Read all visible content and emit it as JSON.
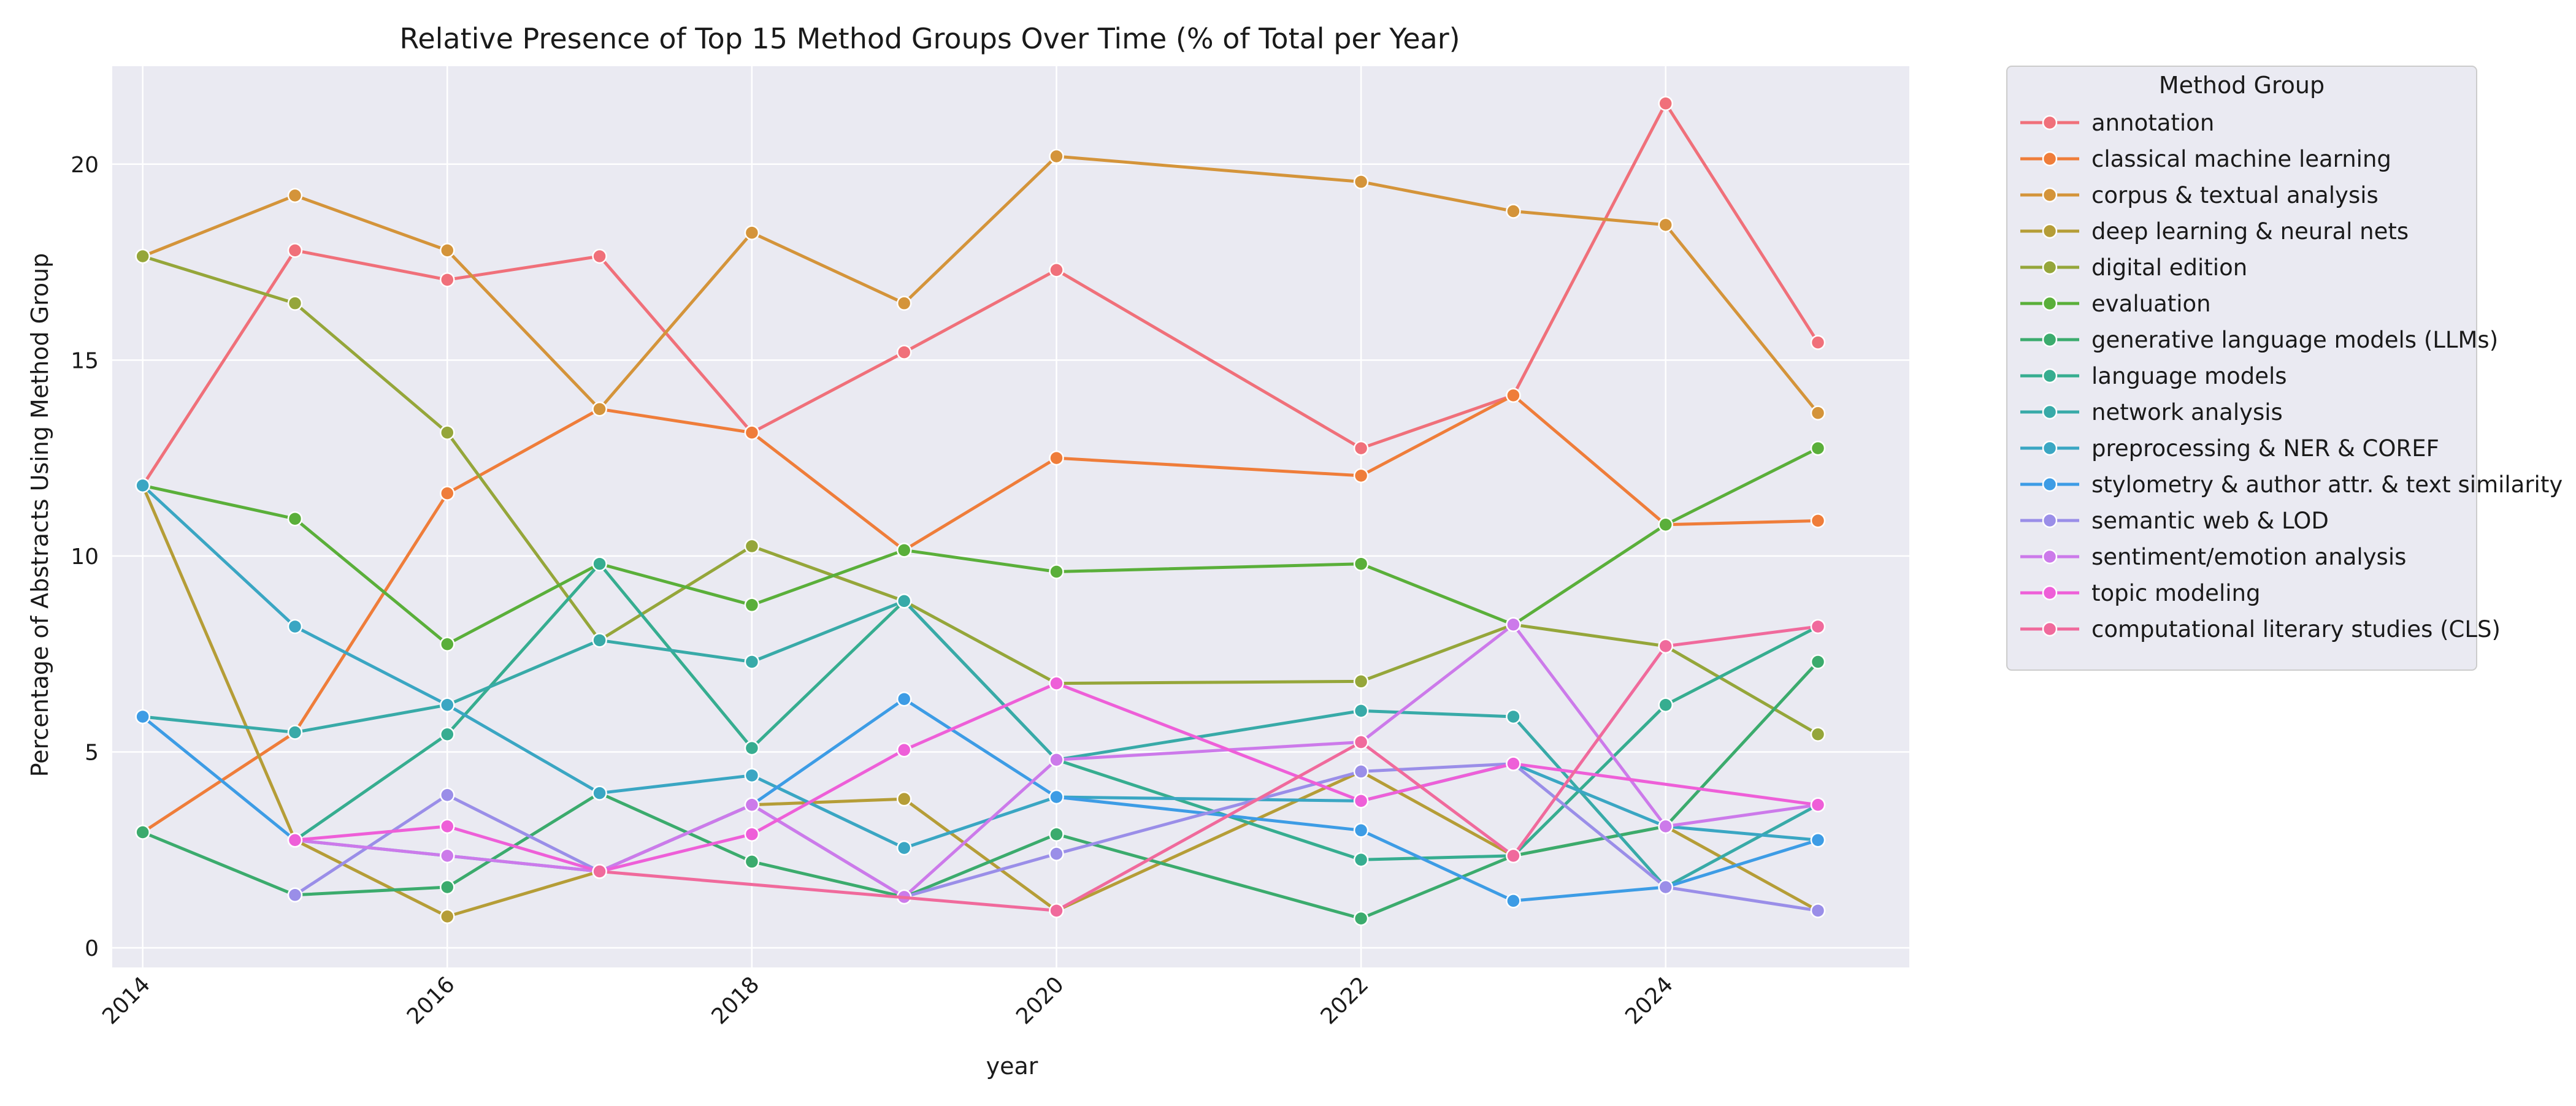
{
  "chart_data": {
    "type": "line",
    "title": "Relative Presence of Top 15 Method Groups Over Time (% of Total per Year)",
    "xlabel": "year",
    "ylabel": "Percentage of Abstracts Using Method Group",
    "xlim": [
      2013.8,
      2025.6
    ],
    "ylim": [
      -0.5,
      22.5
    ],
    "xticks": [
      2014,
      2016,
      2018,
      2020,
      2022,
      2024
    ],
    "yticks": [
      0,
      5,
      10,
      15,
      20
    ],
    "grid": true,
    "legend": {
      "title": "Method Group",
      "placement": "outside-right"
    },
    "series": [
      {
        "name": "annotation",
        "color": "#f0707a",
        "points": [
          [
            2014,
            11.8
          ],
          [
            2015,
            17.8
          ],
          [
            2016,
            17.05
          ],
          [
            2017,
            17.65
          ],
          [
            2018,
            13.15
          ],
          [
            2019,
            15.2
          ],
          [
            2020,
            17.3
          ],
          [
            2022,
            12.75
          ],
          [
            2023,
            14.1
          ],
          [
            2024,
            21.55
          ],
          [
            2025,
            15.45
          ]
        ]
      },
      {
        "name": "classical machine learning",
        "color": "#ef7d3a",
        "points": [
          [
            2014,
            2.95
          ],
          [
            2015,
            5.5
          ],
          [
            2016,
            11.6
          ],
          [
            2017,
            13.75
          ],
          [
            2018,
            13.15
          ],
          [
            2019,
            10.15
          ],
          [
            2020,
            12.5
          ],
          [
            2022,
            12.05
          ],
          [
            2023,
            14.1
          ],
          [
            2024,
            10.8
          ],
          [
            2025,
            10.9
          ]
        ]
      },
      {
        "name": "corpus & textual analysis",
        "color": "#d4943a",
        "points": [
          [
            2014,
            17.65
          ],
          [
            2015,
            19.2
          ],
          [
            2016,
            17.8
          ],
          [
            2017,
            13.75
          ],
          [
            2018,
            18.25
          ],
          [
            2019,
            16.45
          ],
          [
            2020,
            20.2
          ],
          [
            2022,
            19.55
          ],
          [
            2023,
            18.8
          ],
          [
            2024,
            18.45
          ],
          [
            2025,
            13.65
          ]
        ]
      },
      {
        "name": "deep learning & neural nets",
        "color": "#b59d37",
        "points": [
          [
            2014,
            11.8
          ],
          [
            2015,
            2.75
          ],
          [
            2016,
            0.8
          ],
          [
            2017,
            1.95
          ],
          [
            2018,
            3.65
          ],
          [
            2019,
            3.8
          ],
          [
            2020,
            0.95
          ],
          [
            2022,
            4.5
          ],
          [
            2023,
            2.35
          ],
          [
            2024,
            3.1
          ],
          [
            2025,
            0.95
          ]
        ]
      },
      {
        "name": "digital edition",
        "color": "#95a63a",
        "points": [
          [
            2014,
            17.65
          ],
          [
            2015,
            16.45
          ],
          [
            2016,
            13.15
          ],
          [
            2017,
            7.85
          ],
          [
            2018,
            10.25
          ],
          [
            2019,
            8.85
          ],
          [
            2020,
            6.75
          ],
          [
            2022,
            6.8
          ],
          [
            2023,
            8.25
          ],
          [
            2024,
            7.7
          ],
          [
            2025,
            5.45
          ]
        ]
      },
      {
        "name": "evaluation",
        "color": "#5aaf3a",
        "points": [
          [
            2014,
            11.8
          ],
          [
            2015,
            10.95
          ],
          [
            2016,
            7.75
          ],
          [
            2017,
            9.8
          ],
          [
            2018,
            8.75
          ],
          [
            2019,
            10.15
          ],
          [
            2020,
            9.6
          ],
          [
            2022,
            9.8
          ],
          [
            2023,
            8.25
          ],
          [
            2024,
            10.8
          ],
          [
            2025,
            12.75
          ]
        ]
      },
      {
        "name": "generative language models (LLMs)",
        "color": "#3bab6d",
        "points": [
          [
            2014,
            2.95
          ],
          [
            2015,
            1.35
          ],
          [
            2016,
            1.55
          ],
          [
            2017,
            3.95
          ],
          [
            2018,
            2.2
          ],
          [
            2019,
            1.3
          ],
          [
            2020,
            2.9
          ],
          [
            2022,
            0.75
          ],
          [
            2023,
            2.35
          ],
          [
            2024,
            3.1
          ],
          [
            2025,
            7.3
          ]
        ]
      },
      {
        "name": "language models",
        "color": "#36ad90",
        "points": [
          [
            2015,
            2.75
          ],
          [
            2016,
            5.45
          ],
          [
            2017,
            9.8
          ],
          [
            2018,
            5.1
          ],
          [
            2019,
            8.85
          ],
          [
            2020,
            4.8
          ],
          [
            2022,
            2.25
          ],
          [
            2023,
            2.35
          ],
          [
            2024,
            6.2
          ],
          [
            2025,
            8.2
          ]
        ]
      },
      {
        "name": "network analysis",
        "color": "#38aaa8",
        "points": [
          [
            2014,
            5.9
          ],
          [
            2015,
            5.5
          ],
          [
            2016,
            6.2
          ],
          [
            2017,
            7.85
          ],
          [
            2018,
            7.3
          ],
          [
            2019,
            8.85
          ],
          [
            2020,
            4.8
          ],
          [
            2022,
            6.05
          ],
          [
            2023,
            5.9
          ],
          [
            2024,
            1.55
          ],
          [
            2025,
            3.65
          ]
        ]
      },
      {
        "name": "preprocessing & NER & COREF",
        "color": "#3aa6c3",
        "points": [
          [
            2014,
            11.8
          ],
          [
            2015,
            8.2
          ],
          [
            2016,
            6.2
          ],
          [
            2017,
            3.95
          ],
          [
            2018,
            4.4
          ],
          [
            2019,
            2.55
          ],
          [
            2020,
            3.85
          ],
          [
            2022,
            3.75
          ],
          [
            2023,
            4.7
          ],
          [
            2024,
            3.1
          ],
          [
            2025,
            2.75
          ]
        ]
      },
      {
        "name": "stylometry & author attr. & text similarity",
        "color": "#3d9ce5",
        "points": [
          [
            2014,
            5.9
          ],
          [
            2015,
            2.75
          ],
          [
            2017,
            1.95
          ],
          [
            2018,
            3.65
          ],
          [
            2019,
            6.35
          ],
          [
            2020,
            3.85
          ],
          [
            2022,
            3.0
          ],
          [
            2023,
            1.2
          ],
          [
            2024,
            1.55
          ],
          [
            2025,
            2.75
          ]
        ]
      },
      {
        "name": "semantic web & LOD",
        "color": "#9a8ee8",
        "points": [
          [
            2015,
            1.35
          ],
          [
            2016,
            3.9
          ],
          [
            2017,
            1.95
          ],
          [
            2018,
            3.65
          ],
          [
            2019,
            1.3
          ],
          [
            2020,
            2.4
          ],
          [
            2022,
            4.5
          ],
          [
            2023,
            4.7
          ],
          [
            2024,
            1.55
          ],
          [
            2025,
            0.95
          ]
        ]
      },
      {
        "name": "sentiment/emotion analysis",
        "color": "#cc7aea",
        "points": [
          [
            2015,
            2.75
          ],
          [
            2016,
            2.35
          ],
          [
            2017,
            1.95
          ],
          [
            2018,
            3.65
          ],
          [
            2019,
            1.3
          ],
          [
            2020,
            4.8
          ],
          [
            2022,
            5.25
          ],
          [
            2023,
            8.25
          ],
          [
            2024,
            3.1
          ],
          [
            2025,
            3.65
          ]
        ]
      },
      {
        "name": "topic modeling",
        "color": "#ee5fd8",
        "points": [
          [
            2015,
            2.75
          ],
          [
            2016,
            3.1
          ],
          [
            2017,
            1.95
          ],
          [
            2018,
            2.9
          ],
          [
            2019,
            5.05
          ],
          [
            2020,
            6.75
          ],
          [
            2022,
            3.75
          ],
          [
            2023,
            4.7
          ],
          [
            2025,
            3.65
          ]
        ]
      },
      {
        "name": "computational literary studies (CLS)",
        "color": "#f06a9c",
        "points": [
          [
            2017,
            1.95
          ],
          [
            2020,
            0.95
          ],
          [
            2022,
            5.25
          ],
          [
            2023,
            2.35
          ],
          [
            2024,
            7.7
          ],
          [
            2025,
            8.2
          ]
        ]
      }
    ]
  }
}
